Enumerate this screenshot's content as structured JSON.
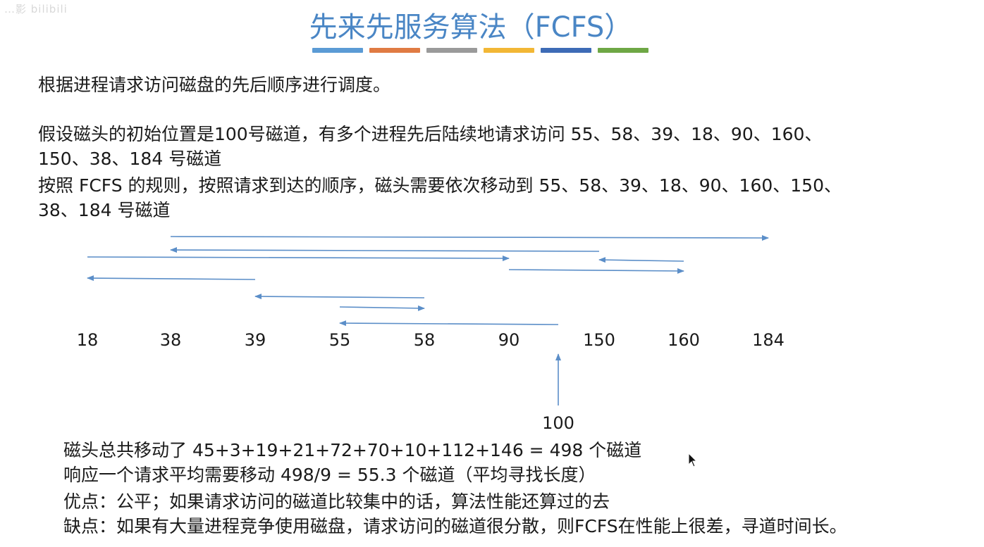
{
  "watermark": "…影 bilibili",
  "title": "先来先服务算法（FCFS）",
  "accent_bar_colors": [
    "#5b9bd5",
    "#e07b43",
    "#9a9a9a",
    "#f2b735",
    "#3d6bb6",
    "#6ea745"
  ],
  "description": "根据进程请求访问磁盘的先后顺序进行调度。",
  "example": {
    "line1": "假设磁头的初始位置是100号磁道，有多个进程先后陆续地请求访问 55、58、39、18、90、160、",
    "line2": "150、38、184 号磁道",
    "line3": "按照 FCFS 的规则，按照请求到达的顺序，磁头需要依次移动到 55、58、39、18、90、160、150、",
    "line4": "38、184 号磁道"
  },
  "diagram": {
    "tracks": [
      "18",
      "38",
      "39",
      "55",
      "58",
      "90",
      "150",
      "160",
      "184"
    ],
    "start_track": "100",
    "move_sequence": [
      "100",
      "55",
      "58",
      "39",
      "18",
      "90",
      "160",
      "150",
      "38",
      "184"
    ],
    "arrow_color": "#5b8ec8"
  },
  "summary": {
    "line1": "磁头总共移动了  45+3+19+21+72+70+10+112+146 = 498  个磁道",
    "line2": "响应一个请求平均需要移动 498/9 = 55.3 个磁道（平均寻找长度）",
    "line3": "优点：公平；如果请求访问的磁道比较集中的话，算法性能还算过的去",
    "line4": "缺点：如果有大量进程竞争使用磁盘，请求访问的磁道很分散，则FCFS在性能上很差，寻道时间长。"
  }
}
